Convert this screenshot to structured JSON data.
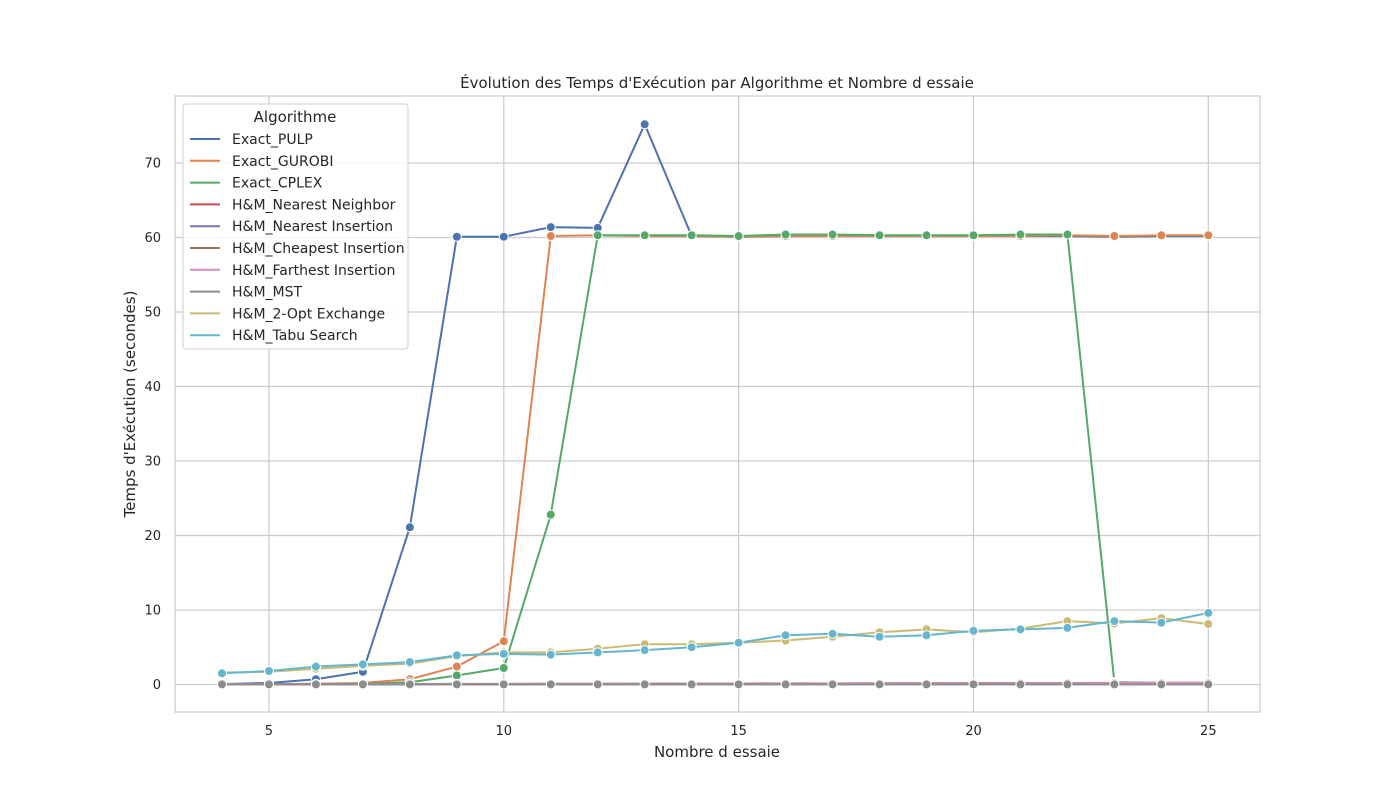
{
  "chart_data": {
    "type": "line",
    "title": "Évolution des Temps d'Exécution par Algorithme et Nombre d essaie",
    "xlabel": "Nombre d essaie",
    "ylabel": "Temps d'Exécution (secondes)",
    "xlim": [
      3,
      26.1
    ],
    "ylim": [
      -3.7,
      79
    ],
    "xticks": [
      5,
      10,
      15,
      20,
      25
    ],
    "yticks": [
      0,
      10,
      20,
      30,
      40,
      50,
      60,
      70
    ],
    "grid": true,
    "legend": {
      "title": "Algorithme",
      "placement": "top-left"
    },
    "x": [
      4,
      5,
      6,
      7,
      8,
      9,
      10,
      11,
      12,
      13,
      14,
      15,
      16,
      17,
      18,
      19,
      20,
      21,
      22,
      23,
      24,
      25
    ],
    "series": [
      {
        "name": "Exact_PULP",
        "color": "#4c72b0",
        "values": [
          0.05,
          0.2,
          0.7,
          1.7,
          21.1,
          60.1,
          60.1,
          61.4,
          61.3,
          75.2,
          60.2,
          60.1,
          60.2,
          60.2,
          60.2,
          60.2,
          60.2,
          60.2,
          60.2,
          60.1,
          60.2,
          60.2
        ]
      },
      {
        "name": "Exact_GUROBI",
        "color": "#dd8452",
        "values": [
          0.05,
          0.05,
          0.1,
          0.2,
          0.7,
          2.4,
          5.8,
          60.2,
          60.3,
          60.2,
          60.2,
          60.1,
          60.2,
          60.2,
          60.2,
          60.2,
          60.2,
          60.2,
          60.3,
          60.2,
          60.3,
          60.3
        ]
      },
      {
        "name": "Exact_CPLEX",
        "color": "#55a868",
        "values": [
          0.05,
          0.05,
          0.05,
          0.1,
          0.3,
          1.2,
          2.2,
          22.8,
          60.3,
          60.3,
          60.3,
          60.2,
          60.4,
          60.4,
          60.3,
          60.3,
          60.3,
          60.4,
          60.4,
          0.3,
          0.2,
          0.2
        ]
      },
      {
        "name": "H&M_Nearest Neighbor",
        "color": "#c44e52",
        "values": [
          0.02,
          0.02,
          0.02,
          0.02,
          0.02,
          0.03,
          0.03,
          0.03,
          0.03,
          0.03,
          0.03,
          0.04,
          0.04,
          0.04,
          0.04,
          0.04,
          0.05,
          0.05,
          0.05,
          0.05,
          0.05,
          0.05
        ]
      },
      {
        "name": "H&M_Nearest Insertion",
        "color": "#8172b3",
        "values": [
          0.02,
          0.02,
          0.03,
          0.03,
          0.04,
          0.05,
          0.06,
          0.07,
          0.08,
          0.09,
          0.1,
          0.11,
          0.12,
          0.13,
          0.14,
          0.15,
          0.16,
          0.17,
          0.18,
          0.19,
          0.2,
          0.21
        ]
      },
      {
        "name": "H&M_Cheapest Insertion",
        "color": "#937860",
        "values": [
          0.02,
          0.03,
          0.04,
          0.05,
          0.06,
          0.07,
          0.08,
          0.09,
          0.1,
          0.11,
          0.12,
          0.13,
          0.14,
          0.15,
          0.16,
          0.17,
          0.18,
          0.19,
          0.2,
          0.21,
          0.22,
          0.23
        ]
      },
      {
        "name": "H&M_Farthest Insertion",
        "color": "#da8bc3",
        "values": [
          0.02,
          0.02,
          0.03,
          0.03,
          0.04,
          0.05,
          0.05,
          0.06,
          0.07,
          0.08,
          0.09,
          0.1,
          0.11,
          0.12,
          0.13,
          0.14,
          0.15,
          0.16,
          0.17,
          0.18,
          0.19,
          0.2
        ]
      },
      {
        "name": "H&M_MST",
        "color": "#8c8c8c",
        "values": [
          0.01,
          0.01,
          0.01,
          0.01,
          0.01,
          0.01,
          0.01,
          0.01,
          0.01,
          0.01,
          0.01,
          0.01,
          0.01,
          0.01,
          0.01,
          0.01,
          0.01,
          0.01,
          0.01,
          0.01,
          0.01,
          0.01
        ]
      },
      {
        "name": "H&M_2-Opt Exchange",
        "color": "#ccb974",
        "values": [
          1.6,
          1.7,
          2.1,
          2.5,
          2.8,
          3.8,
          4.3,
          4.3,
          4.8,
          5.4,
          5.4,
          5.6,
          5.9,
          6.4,
          7.0,
          7.4,
          7.0,
          7.5,
          8.5,
          8.2,
          8.9,
          8.1
        ]
      },
      {
        "name": "H&M_Tabu Search",
        "color": "#64b5cd",
        "values": [
          1.5,
          1.8,
          2.4,
          2.7,
          3.0,
          3.9,
          4.1,
          4.0,
          4.3,
          4.6,
          5.0,
          5.6,
          6.6,
          6.8,
          6.4,
          6.6,
          7.2,
          7.4,
          7.6,
          8.5,
          8.3,
          9.6
        ]
      }
    ]
  }
}
